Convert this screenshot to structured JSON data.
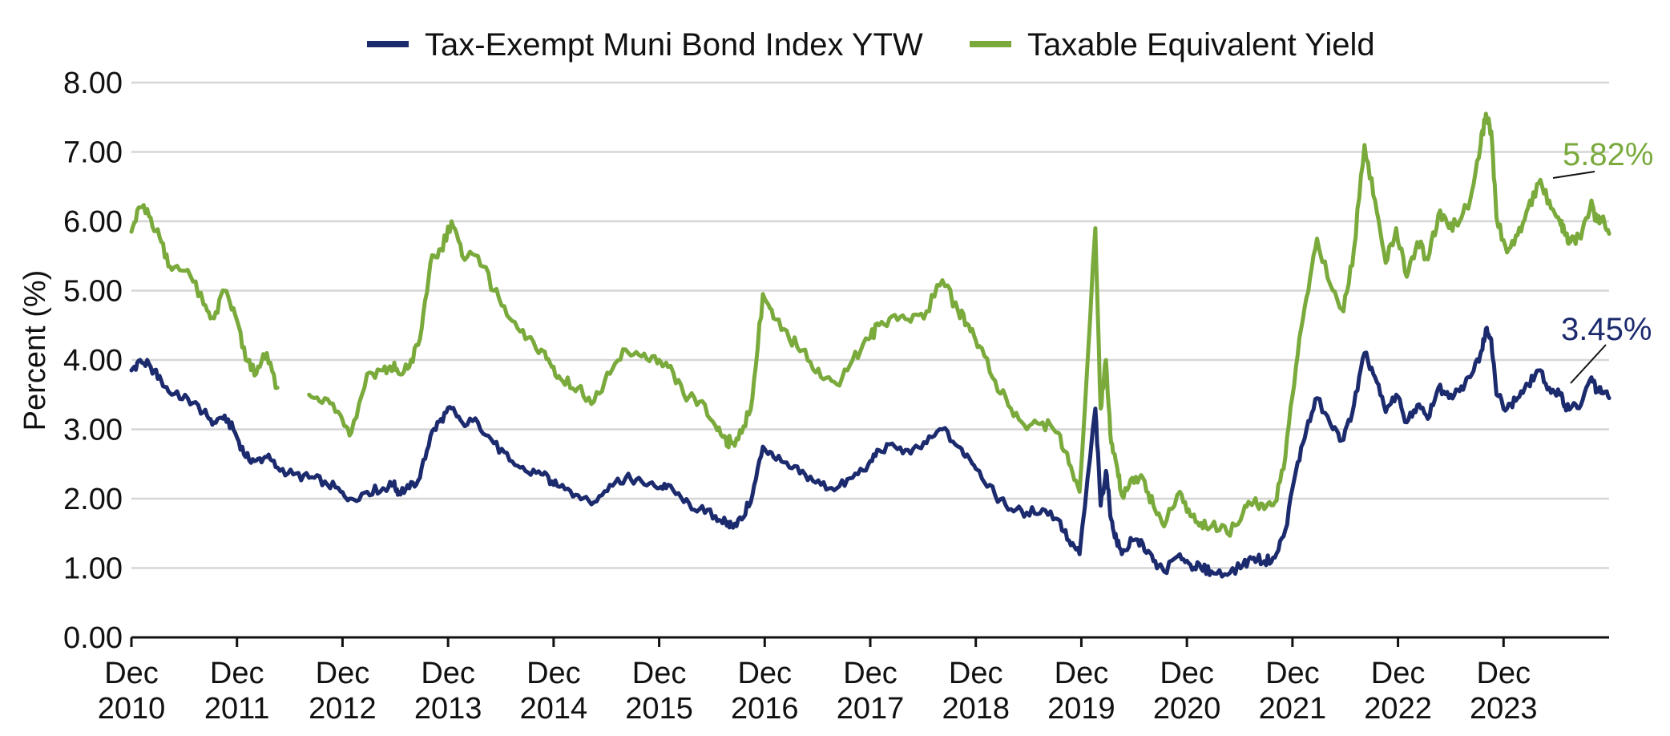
{
  "chart_data": {
    "type": "line",
    "title": "",
    "xlabel": "",
    "ylabel": "Percent (%)",
    "ylim": [
      0,
      8
    ],
    "y_ticks": [
      "0.00",
      "1.00",
      "2.00",
      "3.00",
      "4.00",
      "5.00",
      "6.00",
      "7.00",
      "8.00"
    ],
    "x_range": [
      2010.917,
      2024.917
    ],
    "x_ticks": [
      {
        "x": 2010.917,
        "line1": "Dec",
        "line2": "2010"
      },
      {
        "x": 2011.917,
        "line1": "Dec",
        "line2": "2011"
      },
      {
        "x": 2012.917,
        "line1": "Dec",
        "line2": "2012"
      },
      {
        "x": 2013.917,
        "line1": "Dec",
        "line2": "2013"
      },
      {
        "x": 2014.917,
        "line1": "Dec",
        "line2": "2014"
      },
      {
        "x": 2015.917,
        "line1": "Dec",
        "line2": "2015"
      },
      {
        "x": 2016.917,
        "line1": "Dec",
        "line2": "2016"
      },
      {
        "x": 2017.917,
        "line1": "Dec",
        "line2": "2017"
      },
      {
        "x": 2018.917,
        "line1": "Dec",
        "line2": "2018"
      },
      {
        "x": 2019.917,
        "line1": "Dec",
        "line2": "2019"
      },
      {
        "x": 2020.917,
        "line1": "Dec",
        "line2": "2020"
      },
      {
        "x": 2021.917,
        "line1": "Dec",
        "line2": "2021"
      },
      {
        "x": 2022.917,
        "line1": "Dec",
        "line2": "2022"
      },
      {
        "x": 2023.917,
        "line1": "Dec",
        "line2": "2023"
      }
    ],
    "grid": true,
    "legend_position": "top-center",
    "series": [
      {
        "name": "Tax-Exempt Muni Bond Index YTW",
        "color": "#1c2a6e",
        "end_label": "3.45%",
        "x": [
          2010.917,
          2011.0,
          2011.1,
          2011.2,
          2011.3,
          2011.45,
          2011.6,
          2011.7,
          2011.8,
          2011.9,
          2012.0,
          2012.1,
          2012.2,
          2012.3,
          2012.45,
          2012.6,
          2012.75,
          2012.9,
          2013.0,
          2013.15,
          2013.3,
          2013.4,
          2013.45,
          2013.55,
          2013.65,
          2013.75,
          2013.85,
          2013.95,
          2014.05,
          2014.2,
          2014.35,
          2014.5,
          2014.65,
          2014.8,
          2014.9,
          2015.0,
          2015.15,
          2015.3,
          2015.45,
          2015.6,
          2015.75,
          2015.9,
          2016.0,
          2016.15,
          2016.3,
          2016.45,
          2016.55,
          2016.6,
          2016.7,
          2016.8,
          2016.9,
          2017.0,
          2017.15,
          2017.3,
          2017.45,
          2017.6,
          2017.75,
          2017.9,
          2018.0,
          2018.15,
          2018.3,
          2018.45,
          2018.6,
          2018.75,
          2018.85,
          2018.95,
          2019.1,
          2019.25,
          2019.4,
          2019.55,
          2019.7,
          2019.8,
          2019.9,
          2020.05,
          2020.1,
          2020.15,
          2020.2,
          2020.25,
          2020.3,
          2020.4,
          2020.5,
          2020.6,
          2020.7,
          2020.85,
          2020.95,
          2021.05,
          2021.15,
          2021.3,
          2021.45,
          2021.55,
          2021.65,
          2021.75,
          2021.85,
          2021.95,
          2022.05,
          2022.15,
          2022.3,
          2022.4,
          2022.5,
          2022.6,
          2022.7,
          2022.8,
          2022.9,
          2023.0,
          2023.1,
          2023.2,
          2023.3,
          2023.4,
          2023.5,
          2023.6,
          2023.7,
          2023.75,
          2023.8,
          2023.85,
          2023.95,
          2024.05,
          2024.15,
          2024.25,
          2024.35,
          2024.45,
          2024.5,
          2024.55,
          2024.65,
          2024.75,
          2024.8,
          2024.85,
          2024.917
        ],
        "y": [
          3.85,
          4.0,
          3.9,
          3.7,
          3.5,
          3.45,
          3.25,
          3.1,
          3.2,
          2.95,
          2.6,
          2.55,
          2.6,
          2.45,
          2.35,
          2.3,
          2.25,
          2.1,
          2.0,
          2.1,
          2.15,
          2.2,
          2.1,
          2.15,
          2.3,
          2.9,
          3.15,
          3.3,
          3.1,
          3.1,
          2.8,
          2.55,
          2.4,
          2.35,
          2.25,
          2.2,
          2.05,
          1.95,
          2.2,
          2.3,
          2.25,
          2.15,
          2.2,
          1.95,
          1.85,
          1.75,
          1.65,
          1.62,
          1.7,
          2.05,
          2.75,
          2.6,
          2.45,
          2.35,
          2.2,
          2.15,
          2.3,
          2.5,
          2.7,
          2.75,
          2.65,
          2.8,
          3.0,
          2.75,
          2.6,
          2.4,
          2.05,
          1.85,
          1.8,
          1.85,
          1.7,
          1.4,
          1.2,
          3.3,
          1.9,
          2.4,
          1.7,
          1.4,
          1.2,
          1.4,
          1.35,
          1.1,
          0.95,
          1.2,
          1.05,
          1.0,
          0.95,
          0.9,
          1.05,
          1.15,
          1.1,
          1.15,
          1.55,
          2.4,
          3.0,
          3.45,
          3.0,
          2.85,
          3.35,
          4.1,
          3.75,
          3.25,
          3.5,
          3.1,
          3.35,
          3.15,
          3.6,
          3.45,
          3.55,
          3.75,
          4.1,
          4.45,
          4.3,
          3.5,
          3.3,
          3.45,
          3.65,
          3.85,
          3.6,
          3.5,
          3.35,
          3.3,
          3.35,
          3.75,
          3.55,
          3.55,
          3.45
        ]
      },
      {
        "name": "Taxable Equivalent Yield",
        "color": "#7aaa3c",
        "end_label": "5.82%",
        "x": [
          2010.917,
          2011.0,
          2011.1,
          2011.2,
          2011.3,
          2011.45,
          2011.6,
          2011.7,
          2011.8,
          2011.9,
          2012.0,
          2012.1,
          2012.2,
          2012.3,
          2012.45,
          2012.6,
          2012.75,
          2012.9,
          2013.0,
          2013.15,
          2013.3,
          2013.4,
          2013.45,
          2013.55,
          2013.65,
          2013.75,
          2013.85,
          2013.95,
          2014.05,
          2014.2,
          2014.35,
          2014.5,
          2014.65,
          2014.8,
          2014.9,
          2015.0,
          2015.15,
          2015.3,
          2015.45,
          2015.6,
          2015.75,
          2015.9,
          2016.0,
          2016.15,
          2016.3,
          2016.45,
          2016.55,
          2016.6,
          2016.7,
          2016.8,
          2016.9,
          2017.0,
          2017.15,
          2017.3,
          2017.45,
          2017.6,
          2017.75,
          2017.9,
          2018.0,
          2018.15,
          2018.3,
          2018.45,
          2018.6,
          2018.75,
          2018.85,
          2018.95,
          2019.1,
          2019.25,
          2019.4,
          2019.55,
          2019.7,
          2019.8,
          2019.9,
          2020.05,
          2020.1,
          2020.15,
          2020.2,
          2020.25,
          2020.3,
          2020.4,
          2020.5,
          2020.6,
          2020.7,
          2020.85,
          2020.95,
          2021.05,
          2021.15,
          2021.3,
          2021.45,
          2021.55,
          2021.65,
          2021.75,
          2021.85,
          2021.95,
          2022.05,
          2022.15,
          2022.3,
          2022.4,
          2022.5,
          2022.6,
          2022.7,
          2022.8,
          2022.9,
          2023.0,
          2023.1,
          2023.2,
          2023.3,
          2023.4,
          2023.5,
          2023.6,
          2023.7,
          2023.75,
          2023.8,
          2023.85,
          2023.95,
          2024.05,
          2024.15,
          2024.25,
          2024.35,
          2024.45,
          2024.5,
          2024.55,
          2024.65,
          2024.75,
          2024.8,
          2024.85,
          2024.917
        ],
        "y": [
          5.85,
          6.2,
          6.05,
          5.7,
          5.3,
          5.3,
          4.8,
          4.6,
          5.0,
          4.65,
          4.0,
          3.8,
          4.1,
          3.6,
          null,
          3.5,
          3.45,
          3.2,
          2.95,
          3.8,
          3.85,
          3.9,
          3.8,
          3.9,
          4.3,
          5.4,
          5.6,
          6.0,
          5.5,
          5.5,
          5.0,
          4.6,
          4.3,
          4.15,
          3.9,
          3.7,
          3.6,
          3.4,
          3.8,
          4.15,
          4.05,
          3.95,
          3.9,
          3.5,
          3.4,
          3.05,
          2.85,
          2.8,
          2.95,
          3.45,
          4.95,
          4.6,
          4.3,
          4.15,
          3.75,
          3.65,
          4.0,
          4.3,
          4.5,
          4.65,
          4.55,
          4.7,
          5.15,
          4.7,
          4.5,
          4.2,
          3.7,
          3.3,
          3.0,
          3.1,
          2.95,
          2.5,
          2.1,
          5.9,
          3.3,
          4.0,
          2.8,
          2.5,
          2.05,
          2.3,
          2.3,
          1.9,
          1.6,
          2.1,
          1.75,
          1.65,
          1.6,
          1.5,
          1.8,
          1.95,
          1.85,
          1.95,
          2.6,
          3.9,
          4.9,
          5.75,
          5.0,
          4.7,
          5.6,
          7.1,
          6.3,
          5.4,
          5.9,
          5.2,
          5.7,
          5.45,
          6.1,
          5.9,
          6.0,
          6.3,
          7.1,
          7.55,
          7.3,
          6.05,
          5.55,
          5.8,
          6.2,
          6.55,
          6.3,
          6.0,
          5.8,
          5.7,
          5.75,
          6.3,
          6.0,
          6.05,
          5.82
        ]
      }
    ]
  }
}
